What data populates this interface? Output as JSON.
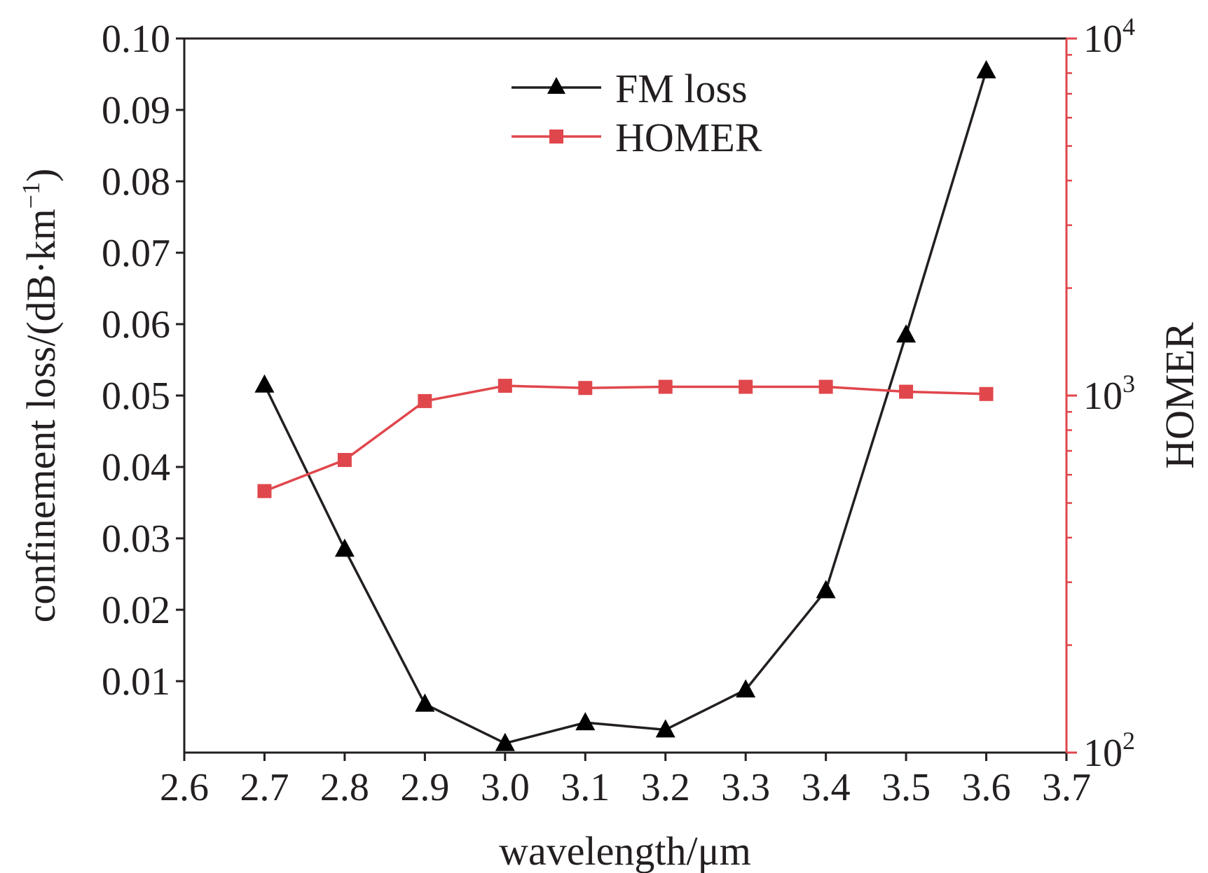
{
  "chart_data": {
    "type": "line",
    "x": [
      2.7,
      2.8,
      2.9,
      3.0,
      3.1,
      3.2,
      3.3,
      3.4,
      3.5,
      3.6
    ],
    "xlabel": "wavelength/μm",
    "xlim": [
      2.6,
      3.7
    ],
    "x_ticks": [
      "2.6",
      "2.7",
      "2.8",
      "2.9",
      "3.0",
      "3.1",
      "3.2",
      "3.3",
      "3.4",
      "3.5",
      "3.6",
      "3.7"
    ],
    "y_left": {
      "label": "confinement loss/(dB·km",
      "label_superscript": "−1",
      "label_suffix": ")",
      "lim": [
        0,
        0.1
      ],
      "ticks": [
        "0.01",
        "0.02",
        "0.03",
        "0.04",
        "0.05",
        "0.06",
        "0.07",
        "0.08",
        "0.09",
        "0.10"
      ],
      "scale": "linear"
    },
    "y_right": {
      "label": "HOMER",
      "lim": [
        100,
        10000
      ],
      "scale": "log",
      "ticks": [
        {
          "base": "10",
          "exp": "2"
        },
        {
          "base": "10",
          "exp": "3"
        },
        {
          "base": "10",
          "exp": "4"
        }
      ],
      "color": "#e0474c"
    },
    "series": [
      {
        "name": "FM loss",
        "axis": "left",
        "marker": "triangle",
        "color": "#231f20",
        "values": [
          0.0515,
          0.0285,
          0.0068,
          0.0013,
          0.0042,
          0.0032,
          0.0088,
          0.0227,
          0.0585,
          0.0955
        ]
      },
      {
        "name": "HOMER",
        "axis": "right",
        "marker": "square",
        "color": "#e0474c",
        "values": [
          540,
          660,
          965,
          1065,
          1050,
          1058,
          1058,
          1058,
          1025,
          1010
        ]
      }
    ],
    "legend": "top-center",
    "grid": false
  }
}
